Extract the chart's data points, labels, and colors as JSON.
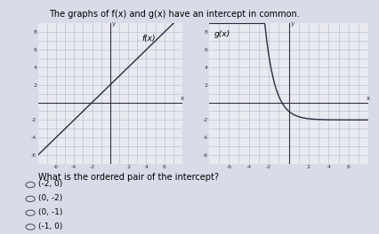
{
  "title": "The graphs of f(x) and g(x) have an intercept in common.",
  "title_fontsize": 7,
  "bg_color": "#d8dce8",
  "plot_bg_color": "#e8eaf0",
  "grid_color": "#b0b8cc",
  "axis_color": "#333344",
  "curve_color": "#2a2a40",
  "fx_label": "f(x)",
  "gx_label": "g(x)",
  "xlim": [
    -8,
    8
  ],
  "ylim": [
    -7,
    9
  ],
  "question": "What is the ordered pair of the intercept?",
  "choices": [
    "(-2, 0)",
    "(0, -2)",
    "(0, -1)",
    "(-1, 0)"
  ],
  "question_fontsize": 7,
  "choice_fontsize": 6.5
}
